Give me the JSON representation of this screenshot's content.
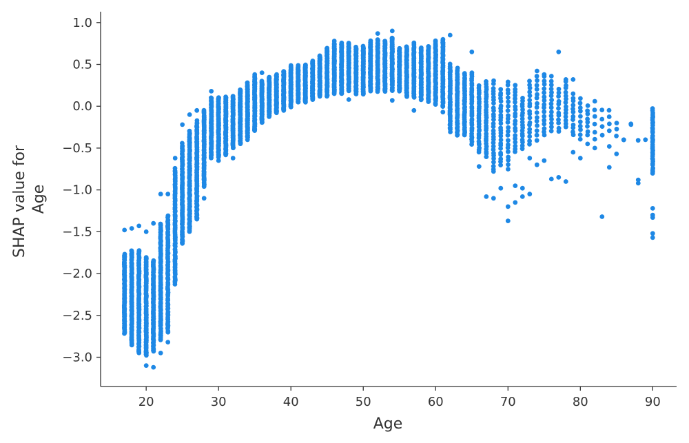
{
  "chart_data": {
    "type": "scatter",
    "title": "",
    "xlabel": "Age",
    "ylabel_lines": [
      "SHAP value for",
      "Age"
    ],
    "xlim": [
      13.7,
      93.3
    ],
    "ylim": [
      -3.35,
      1.13
    ],
    "xticks": [
      20,
      30,
      40,
      50,
      60,
      70,
      80,
      90
    ],
    "xtick_labels": [
      "20",
      "30",
      "40",
      "50",
      "60",
      "70",
      "80",
      "90"
    ],
    "yticks": [
      1.0,
      0.5,
      0.0,
      -0.5,
      -1.0,
      -1.5,
      -2.0,
      -2.5,
      -3.0
    ],
    "ytick_labels": [
      "1.0",
      "0.5",
      "0.0",
      "−0.5",
      "−1.0",
      "−1.5",
      "−2.0",
      "−2.5",
      "−3.0"
    ],
    "grid": false,
    "marker_color": "#1E88E5",
    "profile": [
      {
        "age": 17,
        "low": -2.72,
        "high": -1.77,
        "n": 90
      },
      {
        "age": 18,
        "low": -2.85,
        "high": -1.72,
        "n": 90
      },
      {
        "age": 19,
        "low": -2.95,
        "high": -1.72,
        "n": 95
      },
      {
        "age": 20,
        "low": -2.98,
        "high": -1.8,
        "n": 95
      },
      {
        "age": 21,
        "low": -2.92,
        "high": -1.85,
        "n": 90
      },
      {
        "age": 22,
        "low": -2.8,
        "high": -1.4,
        "n": 85
      },
      {
        "age": 23,
        "low": -2.7,
        "high": -1.3,
        "n": 80
      },
      {
        "age": 24,
        "low": -2.12,
        "high": -0.75,
        "n": 80
      },
      {
        "age": 25,
        "low": -1.65,
        "high": -0.45,
        "n": 75
      },
      {
        "age": 26,
        "low": -1.5,
        "high": -0.3,
        "n": 75
      },
      {
        "age": 27,
        "low": -1.35,
        "high": -0.18,
        "n": 75
      },
      {
        "age": 28,
        "low": -0.95,
        "high": -0.05,
        "n": 70
      },
      {
        "age": 29,
        "low": -0.62,
        "high": 0.1,
        "n": 70
      },
      {
        "age": 30,
        "low": -0.6,
        "high": 0.1,
        "n": 70
      },
      {
        "age": 31,
        "low": -0.58,
        "high": 0.12,
        "n": 70
      },
      {
        "age": 32,
        "low": -0.5,
        "high": 0.12,
        "n": 70
      },
      {
        "age": 33,
        "low": -0.45,
        "high": 0.2,
        "n": 70
      },
      {
        "age": 34,
        "low": -0.38,
        "high": 0.28,
        "n": 70
      },
      {
        "age": 35,
        "low": -0.3,
        "high": 0.35,
        "n": 70
      },
      {
        "age": 36,
        "low": -0.2,
        "high": 0.3,
        "n": 65
      },
      {
        "age": 37,
        "low": -0.12,
        "high": 0.35,
        "n": 65
      },
      {
        "age": 38,
        "low": -0.08,
        "high": 0.38,
        "n": 65
      },
      {
        "age": 39,
        "low": -0.05,
        "high": 0.42,
        "n": 65
      },
      {
        "age": 40,
        "low": 0.0,
        "high": 0.48,
        "n": 65
      },
      {
        "age": 41,
        "low": 0.05,
        "high": 0.48,
        "n": 65
      },
      {
        "age": 42,
        "low": 0.05,
        "high": 0.5,
        "n": 65
      },
      {
        "age": 43,
        "low": 0.08,
        "high": 0.55,
        "n": 65
      },
      {
        "age": 44,
        "low": 0.12,
        "high": 0.6,
        "n": 65
      },
      {
        "age": 45,
        "low": 0.12,
        "high": 0.7,
        "n": 65
      },
      {
        "age": 46,
        "low": 0.15,
        "high": 0.75,
        "n": 65
      },
      {
        "age": 47,
        "low": 0.15,
        "high": 0.75,
        "n": 65
      },
      {
        "age": 48,
        "low": 0.18,
        "high": 0.75,
        "n": 60
      },
      {
        "age": 49,
        "low": 0.15,
        "high": 0.7,
        "n": 60
      },
      {
        "age": 50,
        "low": 0.15,
        "high": 0.72,
        "n": 60
      },
      {
        "age": 51,
        "low": 0.18,
        "high": 0.78,
        "n": 60
      },
      {
        "age": 52,
        "low": 0.18,
        "high": 0.8,
        "n": 60
      },
      {
        "age": 53,
        "low": 0.18,
        "high": 0.78,
        "n": 60
      },
      {
        "age": 54,
        "low": 0.18,
        "high": 0.82,
        "n": 60
      },
      {
        "age": 55,
        "low": 0.18,
        "high": 0.7,
        "n": 55
      },
      {
        "age": 56,
        "low": 0.12,
        "high": 0.72,
        "n": 55
      },
      {
        "age": 57,
        "low": 0.1,
        "high": 0.75,
        "n": 55
      },
      {
        "age": 58,
        "low": 0.08,
        "high": 0.7,
        "n": 55
      },
      {
        "age": 59,
        "low": 0.05,
        "high": 0.72,
        "n": 55
      },
      {
        "age": 60,
        "low": 0.02,
        "high": 0.78,
        "n": 55
      },
      {
        "age": 61,
        "low": 0.0,
        "high": 0.8,
        "n": 50
      },
      {
        "age": 62,
        "low": -0.3,
        "high": 0.5,
        "n": 50
      },
      {
        "age": 63,
        "low": -0.35,
        "high": 0.45,
        "n": 45
      },
      {
        "age": 64,
        "low": -0.35,
        "high": 0.4,
        "n": 40
      },
      {
        "age": 65,
        "low": -0.45,
        "high": 0.4,
        "n": 35
      },
      {
        "age": 66,
        "low": -0.55,
        "high": 0.25,
        "n": 30
      },
      {
        "age": 67,
        "low": -0.6,
        "high": 0.3,
        "n": 30
      },
      {
        "age": 68,
        "low": -0.75,
        "high": 0.3,
        "n": 28
      },
      {
        "age": 69,
        "low": -0.7,
        "high": 0.2,
        "n": 25
      },
      {
        "age": 70,
        "low": -0.75,
        "high": 0.3,
        "n": 22
      },
      {
        "age": 71,
        "low": -0.55,
        "high": 0.25,
        "n": 20
      },
      {
        "age": 72,
        "low": -0.5,
        "high": 0.1,
        "n": 18
      },
      {
        "age": 73,
        "low": -0.45,
        "high": 0.3,
        "n": 18
      },
      {
        "age": 74,
        "low": -0.4,
        "high": 0.42,
        "n": 16
      },
      {
        "age": 75,
        "low": -0.35,
        "high": 0.35,
        "n": 16
      },
      {
        "age": 76,
        "low": -0.3,
        "high": 0.3,
        "n": 14
      },
      {
        "age": 77,
        "low": -0.3,
        "high": 0.2,
        "n": 12
      },
      {
        "age": 78,
        "low": -0.25,
        "high": 0.3,
        "n": 14
      },
      {
        "age": 79,
        "low": -0.35,
        "high": 0.15,
        "n": 12
      },
      {
        "age": 80,
        "low": -0.4,
        "high": 0.1,
        "n": 10
      },
      {
        "age": 81,
        "low": -0.35,
        "high": 0.0,
        "n": 8
      },
      {
        "age": 82,
        "low": -0.4,
        "high": 0.05,
        "n": 6
      },
      {
        "age": 83,
        "low": -0.35,
        "high": -0.05,
        "n": 4
      },
      {
        "age": 84,
        "low": -0.3,
        "high": -0.05,
        "n": 4
      },
      {
        "age": 85,
        "low": -0.35,
        "high": -0.2,
        "n": 3
      },
      {
        "age": 86,
        "low": -0.4,
        "high": -0.4,
        "n": 1
      },
      {
        "age": 87,
        "low": -0.22,
        "high": -0.22,
        "n": 1
      },
      {
        "age": 88,
        "low": -0.4,
        "high": -0.4,
        "n": 1
      },
      {
        "age": 90,
        "low": -0.8,
        "high": -0.03,
        "n": 35
      }
    ],
    "outliers": [
      [
        67,
        -1.08
      ],
      [
        68,
        -1.1
      ],
      [
        69,
        -0.98
      ],
      [
        70,
        -1.37
      ],
      [
        70,
        -1.2
      ],
      [
        71,
        -1.15
      ],
      [
        72,
        -1.08
      ],
      [
        73,
        -1.05
      ],
      [
        71,
        -0.95
      ],
      [
        72,
        -0.98
      ],
      [
        74,
        -0.7
      ],
      [
        76,
        -0.87
      ],
      [
        77,
        -0.85
      ],
      [
        78,
        -0.9
      ],
      [
        83,
        -1.32
      ],
      [
        84,
        -0.73
      ],
      [
        88,
        -0.88
      ],
      [
        88,
        -0.92
      ],
      [
        90,
        -1.22
      ],
      [
        90,
        -1.3
      ],
      [
        90,
        -1.33
      ],
      [
        90,
        -1.52
      ],
      [
        90,
        -1.57
      ],
      [
        65,
        0.65
      ],
      [
        77,
        0.65
      ],
      [
        75,
        0.38
      ],
      [
        76,
        0.36
      ],
      [
        78,
        0.32
      ],
      [
        79,
        0.32
      ],
      [
        54,
        0.9
      ],
      [
        52,
        0.87
      ],
      [
        62,
        0.85
      ],
      [
        46,
        0.78
      ],
      [
        20,
        -3.1
      ],
      [
        21,
        -3.12
      ],
      [
        22,
        -2.95
      ],
      [
        23,
        -2.82
      ],
      [
        17,
        -1.48
      ],
      [
        18,
        -1.46
      ],
      [
        19,
        -1.43
      ],
      [
        20,
        -1.5
      ],
      [
        22,
        -1.05
      ],
      [
        23,
        -1.05
      ],
      [
        21,
        -1.4
      ],
      [
        24,
        -0.62
      ],
      [
        25,
        -0.22
      ],
      [
        26,
        -0.1
      ],
      [
        27,
        -0.05
      ],
      [
        28,
        -1.1
      ],
      [
        27,
        -1.35
      ],
      [
        29,
        0.18
      ],
      [
        30,
        -0.65
      ],
      [
        32,
        -0.62
      ],
      [
        34,
        -0.4
      ],
      [
        35,
        0.38
      ],
      [
        36,
        0.4
      ],
      [
        48,
        0.08
      ],
      [
        54,
        0.07
      ],
      [
        57,
        -0.05
      ],
      [
        61,
        -0.07
      ],
      [
        66,
        -0.72
      ],
      [
        68,
        -0.78
      ],
      [
        73,
        -0.62
      ],
      [
        75,
        -0.65
      ],
      [
        80,
        -0.62
      ],
      [
        79,
        -0.55
      ],
      [
        82,
        -0.5
      ],
      [
        81,
        -0.45
      ],
      [
        84,
        -0.48
      ],
      [
        85,
        -0.57
      ],
      [
        86,
        -0.4
      ],
      [
        87,
        -0.22
      ],
      [
        89,
        -0.4
      ]
    ]
  }
}
